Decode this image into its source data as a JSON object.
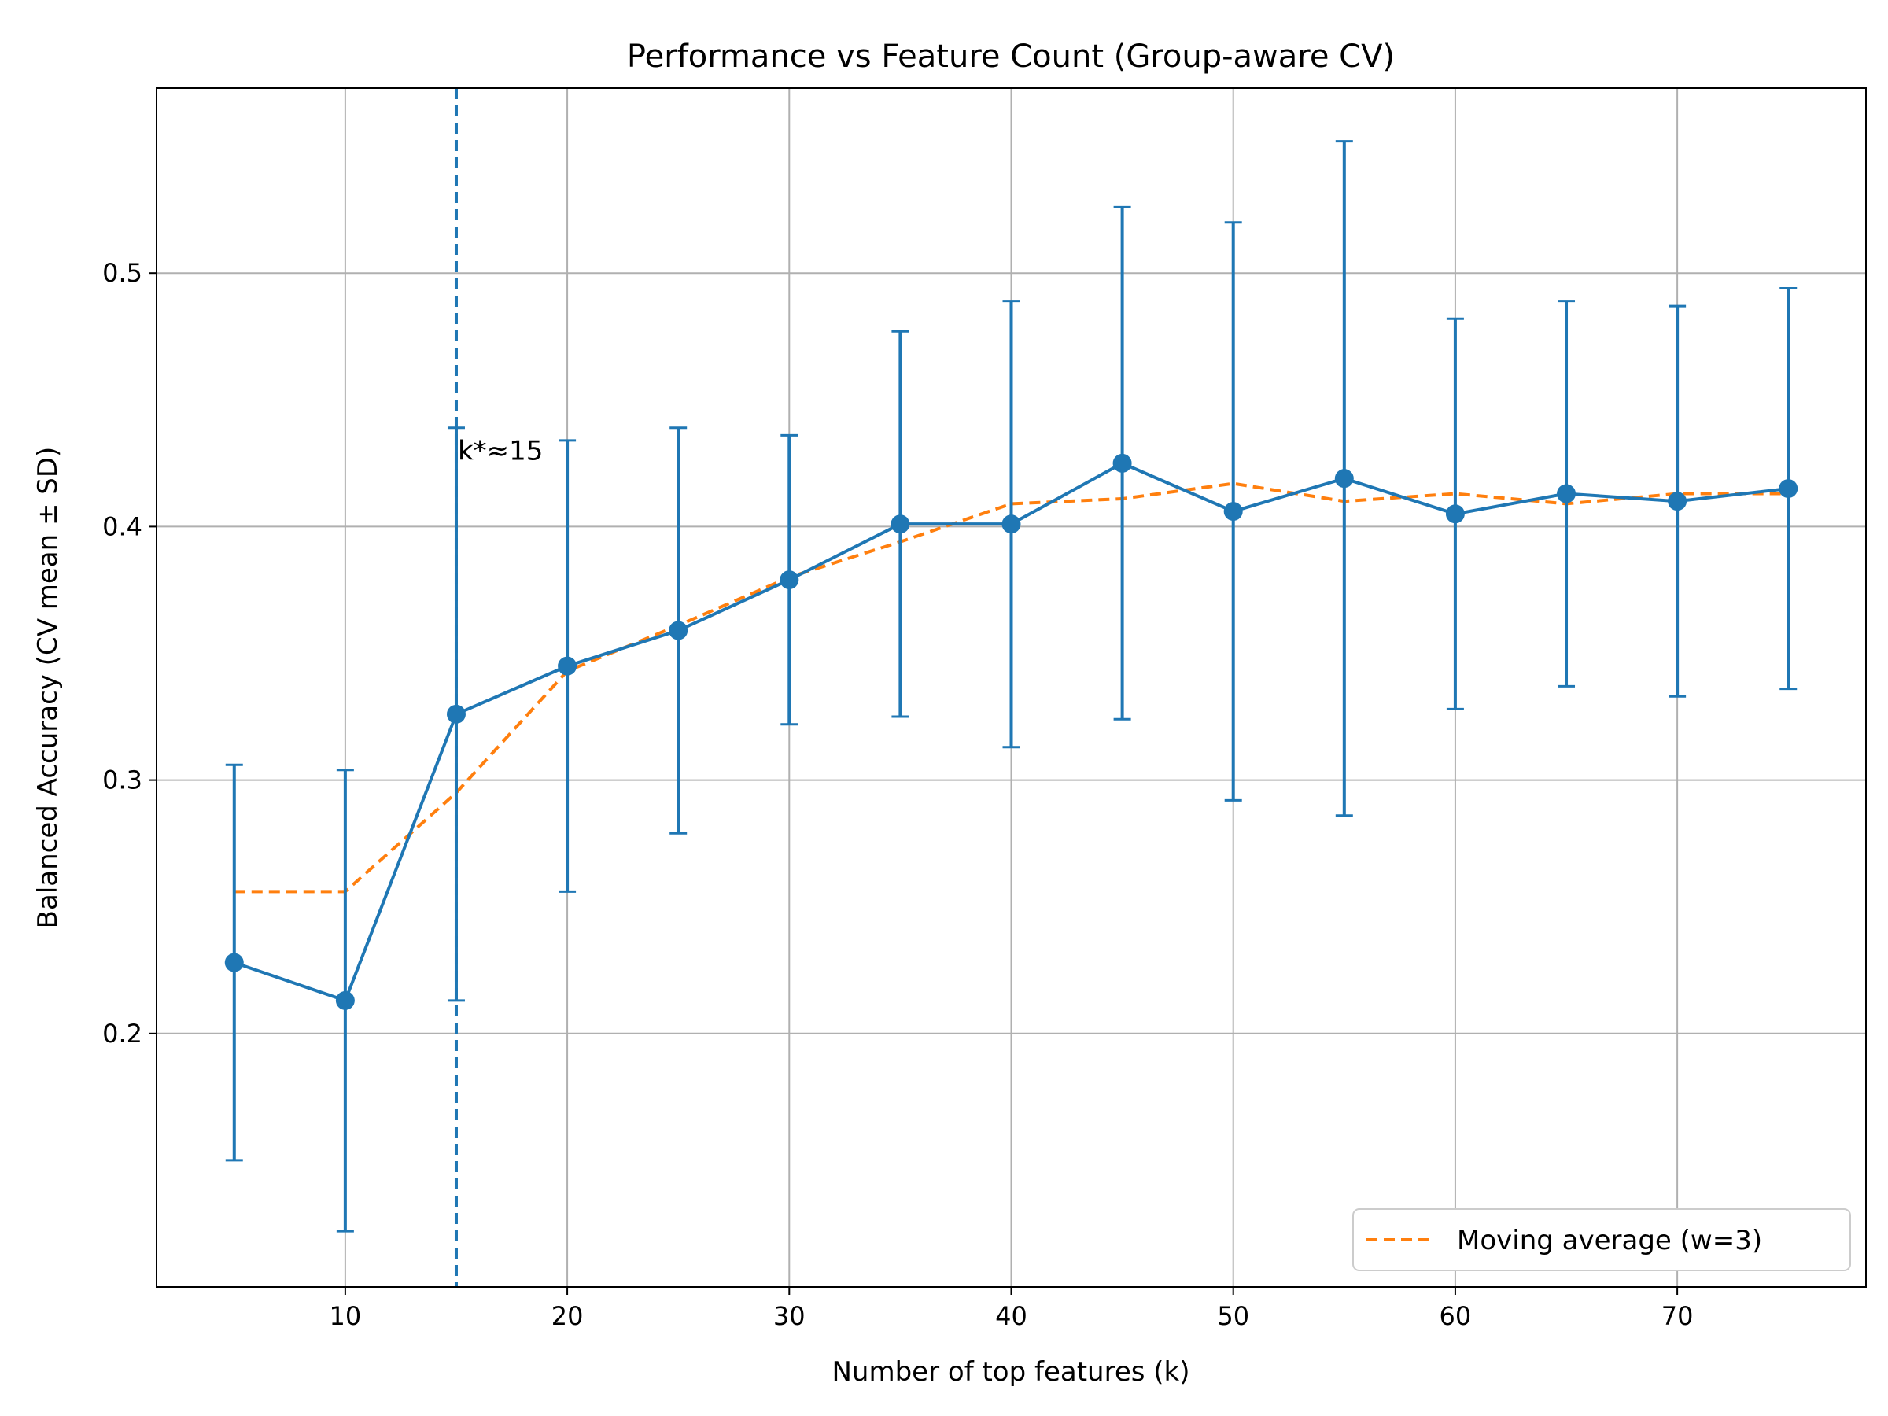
{
  "chart_data": {
    "type": "line",
    "title": "Performance vs Feature Count (Group-aware CV)",
    "xlabel": "Number of top features (k)",
    "ylabel": "Balanced Accuracy (CV mean ± SD)",
    "xlim": [
      1.5,
      78.5
    ],
    "ylim": [
      0.1,
      0.573
    ],
    "xticks": [
      10,
      20,
      30,
      40,
      50,
      60,
      70
    ],
    "xtick_labels": [
      "10",
      "20",
      "30",
      "40",
      "50",
      "60",
      "70"
    ],
    "yticks": [
      0.2,
      0.3,
      0.4,
      0.5
    ],
    "ytick_labels": [
      "0.2",
      "0.3",
      "0.4",
      "0.5"
    ],
    "grid": true,
    "legend_position": "lower-right",
    "x": [
      5,
      10,
      15,
      20,
      25,
      30,
      35,
      40,
      45,
      50,
      55,
      60,
      65,
      70,
      75
    ],
    "series": [
      {
        "kind": "errorbar-line",
        "color": "#1f77b4",
        "values": [
          0.228,
          0.213,
          0.326,
          0.345,
          0.359,
          0.379,
          0.401,
          0.401,
          0.425,
          0.406,
          0.419,
          0.405,
          0.413,
          0.41,
          0.415
        ],
        "sd": [
          0.078,
          0.091,
          0.113,
          0.089,
          0.08,
          0.057,
          0.076,
          0.088,
          0.101,
          0.114,
          0.133,
          0.077,
          0.076,
          0.077,
          0.079
        ]
      },
      {
        "name": "Moving average (w=3)",
        "kind": "dashed-line",
        "color": "#ff7f0e",
        "values": [
          0.256,
          0.256,
          0.295,
          0.343,
          0.361,
          0.38,
          0.394,
          0.409,
          0.411,
          0.417,
          0.41,
          0.413,
          0.409,
          0.413,
          0.413
        ]
      }
    ],
    "vline": {
      "x": 15,
      "color": "#1f77b4",
      "style": "dashed"
    },
    "annotation": {
      "text": "k*≈15",
      "x": 15,
      "y": 0.43
    }
  }
}
